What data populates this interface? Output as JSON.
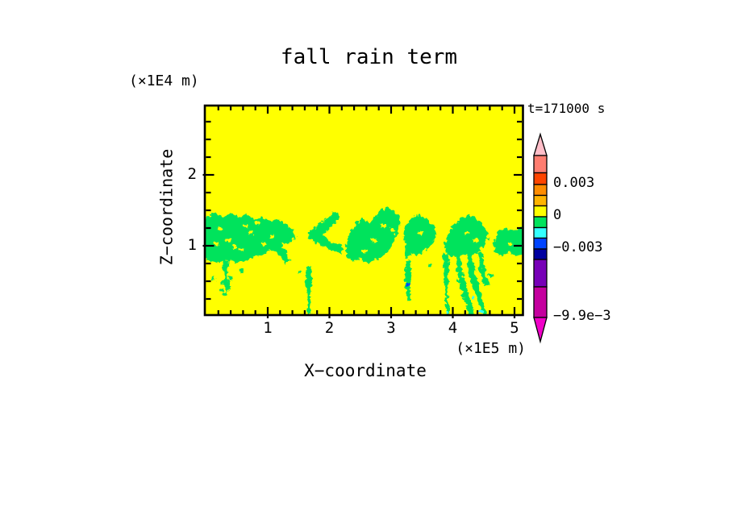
{
  "chart_data": {
    "type": "heatmap",
    "title": "fall rain term",
    "annotation": "t=171000 s",
    "xlabel": "X−coordinate",
    "x_units": "(×1E5 m)",
    "xlim": [
      0,
      5.1
    ],
    "x_major_ticks": [
      1,
      2,
      3,
      4,
      5
    ],
    "x_minor_step": 0.2,
    "ylabel": "Z−coordinate",
    "y_units": "(×1E4 m)",
    "ylim": [
      0,
      2.95
    ],
    "y_major_ticks": [
      1,
      2
    ],
    "y_minor_step": 0.25,
    "colors": {
      "background": "#FFFF00",
      "negative_patch": "#00E35C",
      "frame": "#000000"
    },
    "field_summary": "field ≈ 0 (yellow) everywhere except weakly negative (green) cloud band near z = 0.8–1.5 ×1E4 m with fall streaks reaching the surface near x = 1.65, 3.25, 3.9 and 4.0–4.5 ×1E5 m",
    "regions": [
      {
        "name": "cloud-band-left",
        "points": [
          [
            -0.05,
            1.4
          ],
          [
            0.12,
            1.47
          ],
          [
            0.25,
            1.42
          ],
          [
            0.38,
            1.49
          ],
          [
            0.52,
            1.43
          ],
          [
            0.63,
            1.47
          ],
          [
            0.75,
            1.4
          ],
          [
            0.88,
            1.43
          ],
          [
            1.0,
            1.36
          ],
          [
            1.12,
            1.4
          ],
          [
            1.25,
            1.33
          ],
          [
            1.38,
            1.25
          ],
          [
            1.44,
            1.14
          ],
          [
            1.33,
            1.07
          ],
          [
            1.2,
            1.02
          ],
          [
            1.28,
            0.92
          ],
          [
            1.35,
            0.82
          ],
          [
            1.27,
            0.77
          ],
          [
            1.17,
            0.88
          ],
          [
            1.04,
            0.97
          ],
          [
            0.91,
            0.91
          ],
          [
            0.77,
            0.86
          ],
          [
            0.61,
            0.81
          ],
          [
            0.45,
            0.78
          ],
          [
            0.3,
            0.83
          ],
          [
            0.15,
            0.78
          ],
          [
            -0.05,
            0.84
          ]
        ]
      },
      {
        "name": "cloud-left-tail",
        "points": [
          [
            0.25,
            0.83
          ],
          [
            0.34,
            0.81
          ],
          [
            0.32,
            0.62
          ],
          [
            0.36,
            0.45
          ],
          [
            0.31,
            0.35
          ],
          [
            0.27,
            0.44
          ],
          [
            0.29,
            0.62
          ],
          [
            0.22,
            0.72
          ]
        ]
      },
      {
        "name": "cloud-chevron",
        "points": [
          [
            2.1,
            1.5
          ],
          [
            1.98,
            1.44
          ],
          [
            1.86,
            1.36
          ],
          [
            1.74,
            1.27
          ],
          [
            1.62,
            1.21
          ],
          [
            1.66,
            1.11
          ],
          [
            1.78,
            1.04
          ],
          [
            1.92,
            0.99
          ],
          [
            2.05,
            0.95
          ],
          [
            2.18,
            0.91
          ],
          [
            2.21,
            1.0
          ],
          [
            2.08,
            1.05
          ],
          [
            1.95,
            1.1
          ],
          [
            1.85,
            1.17
          ],
          [
            1.95,
            1.25
          ],
          [
            2.06,
            1.33
          ],
          [
            2.13,
            1.41
          ]
        ]
      },
      {
        "name": "cloud-center",
        "points": [
          [
            2.24,
            1.02
          ],
          [
            2.28,
            1.18
          ],
          [
            2.38,
            1.3
          ],
          [
            2.5,
            1.4
          ],
          [
            2.62,
            1.35
          ],
          [
            2.72,
            1.43
          ],
          [
            2.8,
            1.52
          ],
          [
            2.94,
            1.55
          ],
          [
            3.06,
            1.5
          ],
          [
            3.13,
            1.38
          ],
          [
            3.09,
            1.22
          ],
          [
            3.0,
            1.06
          ],
          [
            2.9,
            0.92
          ],
          [
            2.76,
            0.83
          ],
          [
            2.6,
            0.78
          ],
          [
            2.46,
            0.84
          ],
          [
            2.34,
            0.8
          ],
          [
            2.26,
            0.88
          ]
        ]
      },
      {
        "name": "cloud-center-right",
        "points": [
          [
            3.2,
            1.28
          ],
          [
            3.28,
            1.4
          ],
          [
            3.4,
            1.46
          ],
          [
            3.53,
            1.41
          ],
          [
            3.65,
            1.32
          ],
          [
            3.7,
            1.18
          ],
          [
            3.64,
            1.05
          ],
          [
            3.54,
            0.96
          ],
          [
            3.42,
            0.88
          ],
          [
            3.31,
            0.93
          ],
          [
            3.25,
            0.83
          ],
          [
            3.2,
            0.85
          ],
          [
            3.22,
            1.0
          ],
          [
            3.17,
            1.12
          ]
        ]
      },
      {
        "name": "cloud-right",
        "points": [
          [
            3.84,
            1.0
          ],
          [
            3.9,
            1.18
          ],
          [
            3.99,
            1.32
          ],
          [
            4.12,
            1.41
          ],
          [
            4.27,
            1.44
          ],
          [
            4.41,
            1.37
          ],
          [
            4.52,
            1.26
          ],
          [
            4.56,
            1.12
          ],
          [
            4.48,
            1.02
          ],
          [
            4.38,
            0.93
          ],
          [
            4.25,
            0.87
          ],
          [
            4.12,
            0.91
          ],
          [
            4.0,
            0.85
          ],
          [
            3.9,
            0.89
          ]
        ]
      },
      {
        "name": "cloud-far-right",
        "points": [
          [
            4.64,
            1.08
          ],
          [
            4.72,
            1.2
          ],
          [
            4.83,
            1.27
          ],
          [
            4.95,
            1.22
          ],
          [
            5.06,
            1.29
          ],
          [
            5.15,
            1.24
          ],
          [
            5.15,
            0.92
          ],
          [
            5.0,
            0.87
          ],
          [
            4.88,
            0.94
          ],
          [
            4.76,
            0.88
          ],
          [
            4.66,
            0.94
          ]
        ]
      },
      {
        "name": "fall-streak-1",
        "points": [
          [
            1.6,
            0.72
          ],
          [
            1.67,
            0.74
          ],
          [
            1.7,
            0.54
          ],
          [
            1.66,
            0.3
          ],
          [
            1.68,
            0.06
          ],
          [
            1.62,
            0.02
          ],
          [
            1.62,
            0.3
          ],
          [
            1.59,
            0.5
          ]
        ]
      },
      {
        "name": "fall-streak-2",
        "points": [
          [
            3.21,
            0.8
          ],
          [
            3.28,
            0.82
          ],
          [
            3.31,
            0.6
          ],
          [
            3.28,
            0.4
          ],
          [
            3.29,
            0.26
          ],
          [
            3.24,
            0.25
          ],
          [
            3.22,
            0.45
          ],
          [
            3.19,
            0.62
          ]
        ]
      },
      {
        "name": "fall-streak-3",
        "points": [
          [
            3.84,
            0.9
          ],
          [
            3.91,
            0.91
          ],
          [
            3.93,
            0.65
          ],
          [
            3.9,
            0.4
          ],
          [
            3.92,
            0.1
          ],
          [
            3.94,
            0.03
          ],
          [
            3.87,
            0.02
          ],
          [
            3.86,
            0.3
          ],
          [
            3.82,
            0.55
          ]
        ]
      },
      {
        "name": "fall-streak-4a",
        "points": [
          [
            4.02,
            0.88
          ],
          [
            4.09,
            0.89
          ],
          [
            4.15,
            0.6
          ],
          [
            4.24,
            0.3
          ],
          [
            4.32,
            0.05
          ],
          [
            4.26,
            0.02
          ],
          [
            4.16,
            0.28
          ],
          [
            4.07,
            0.55
          ]
        ]
      },
      {
        "name": "fall-streak-4b",
        "points": [
          [
            4.2,
            0.9
          ],
          [
            4.27,
            0.91
          ],
          [
            4.35,
            0.62
          ],
          [
            4.44,
            0.32
          ],
          [
            4.52,
            0.06
          ],
          [
            4.46,
            0.03
          ],
          [
            4.36,
            0.3
          ],
          [
            4.25,
            0.58
          ]
        ]
      },
      {
        "name": "fall-streak-4c",
        "points": [
          [
            4.38,
            0.92
          ],
          [
            4.45,
            0.93
          ],
          [
            4.5,
            0.7
          ],
          [
            4.56,
            0.48
          ],
          [
            4.5,
            0.44
          ],
          [
            4.43,
            0.62
          ]
        ]
      }
    ],
    "yellow_speckles": [
      [
        0.2,
        1.25
      ],
      [
        0.35,
        1.1
      ],
      [
        0.55,
        0.95
      ],
      [
        0.7,
        1.2
      ],
      [
        0.9,
        1.05
      ],
      [
        1.05,
        1.15
      ],
      [
        0.6,
        1.3
      ],
      [
        0.45,
        1.0
      ],
      [
        0.8,
        1.35
      ],
      [
        0.15,
        1.05
      ],
      [
        2.55,
        0.95
      ],
      [
        2.7,
        1.1
      ],
      [
        2.85,
        1.3
      ],
      [
        3.0,
        1.25
      ],
      [
        3.45,
        1.2
      ],
      [
        4.2,
        1.2
      ],
      [
        4.35,
        1.1
      ],
      [
        4.9,
        1.05
      ]
    ],
    "specks": [
      [
        0.3,
        0.62
      ],
      [
        0.26,
        0.5
      ],
      [
        0.34,
        0.44
      ],
      [
        0.23,
        0.4
      ],
      [
        0.37,
        0.56
      ],
      [
        0.29,
        0.34
      ],
      [
        0.1,
        0.56
      ],
      [
        0.55,
        0.66
      ],
      [
        1.5,
        0.65
      ],
      [
        3.6,
        0.75
      ],
      [
        4.6,
        0.6
      ],
      [
        3.26,
        0.47,
        "#0044FF"
      ],
      [
        4.44,
        0.08,
        "#33FFFF"
      ],
      [
        4.3,
        0.28,
        "#33FFFF"
      ],
      [
        3.89,
        0.07,
        "#33FFFF"
      ]
    ],
    "colorbar": {
      "segments": [
        {
          "color": "#FF7D70",
          "height": 21.5
        },
        {
          "color": "#FF4500",
          "height": 14.5
        },
        {
          "color": "#FF8C00",
          "height": 13.5
        },
        {
          "color": "#FFB400",
          "height": 13
        },
        {
          "color": "#FFFF00",
          "height": 13.5
        },
        {
          "color": "#00E35C",
          "height": 13.5
        },
        {
          "color": "#33FFFF",
          "height": 13
        },
        {
          "color": "#0044FF",
          "height": 13.5
        },
        {
          "color": "#0000A0",
          "height": 13
        },
        {
          "color": "#7700B7",
          "height": 34
        },
        {
          "color": "#C4009E",
          "height": 38
        }
      ],
      "arrow_top_color": "#FFBEC8",
      "arrow_bottom_color": "#F000C8",
      "labels": [
        {
          "text": "0.003",
          "after_segment": 2
        },
        {
          "text": "0",
          "after_segment": 5
        },
        {
          "text": "−0.003",
          "after_segment": 8
        },
        {
          "text": "−9.9e−3",
          "after_segment": 11
        }
      ]
    }
  }
}
